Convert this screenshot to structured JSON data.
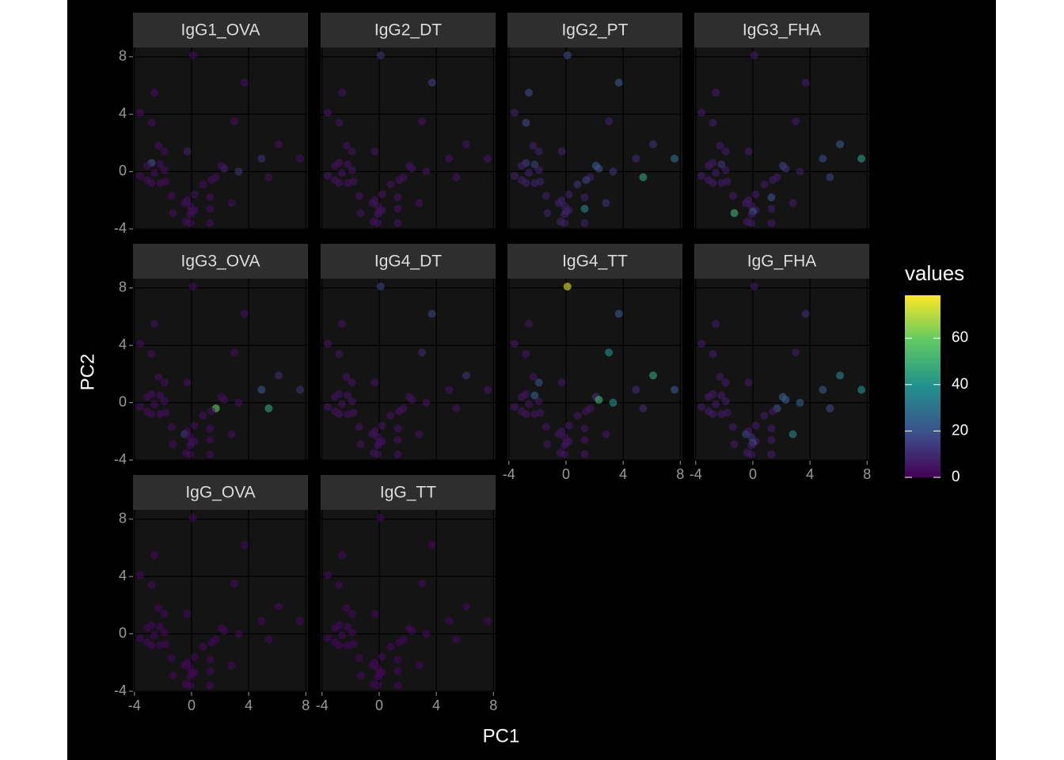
{
  "chart_data": {
    "type": "scatter",
    "x_label": "PC1",
    "y_label": "PC2",
    "legend_title": "values",
    "xlim": [
      -4.1,
      8.15
    ],
    "ylim": [
      -4.05,
      8.65
    ],
    "xticks": [
      -4,
      0,
      4,
      8
    ],
    "yticks": [
      -4,
      0,
      4,
      8
    ],
    "color_lim": [
      0,
      78.5
    ],
    "color_ticks": [
      0,
      20,
      40,
      60
    ],
    "colormap": "viridis",
    "grid": true,
    "x": [
      0.1,
      -2.6,
      3.7,
      -3.6,
      -2.8,
      3.0,
      6.1,
      -2.3,
      -1.9,
      -0.3,
      4.9,
      7.6,
      -2.8,
      -2.2,
      -3.1,
      2.1,
      2.3,
      3.3,
      1.7,
      -1.9,
      -2.6,
      -3.6,
      5.4,
      -3.1,
      1.4,
      -1.8,
      -2.2,
      -2.8,
      0.8,
      0.2,
      -1.4,
      -0.3,
      1.3,
      2.8,
      -0.5,
      -0.1,
      0.2,
      1.3,
      0.0,
      -1.3,
      -0.1,
      1.3,
      -0.4,
      -0.1
    ],
    "y": [
      8.1,
      5.5,
      6.2,
      4.1,
      3.4,
      3.5,
      1.9,
      1.8,
      1.4,
      1.4,
      0.9,
      0.9,
      0.6,
      0.5,
      0.4,
      0.4,
      0.2,
      0.0,
      -0.4,
      0.1,
      -0.1,
      -0.3,
      -0.4,
      -0.6,
      -0.6,
      -0.7,
      -0.8,
      -0.8,
      -0.9,
      -1.6,
      -1.7,
      -2.0,
      -1.8,
      -2.2,
      -2.2,
      -2.4,
      -2.7,
      -2.6,
      -2.8,
      -2.9,
      -3.0,
      -3.6,
      -3.5,
      -3.6
    ],
    "facets": [
      {
        "name": "IgG1_OVA",
        "values": [
          3,
          3,
          3,
          3,
          3,
          3,
          3,
          3,
          3,
          8,
          12,
          3,
          20,
          3,
          3,
          3,
          8,
          12,
          3,
          3,
          3,
          3,
          3,
          3,
          3,
          3,
          3,
          3,
          3,
          3,
          3,
          3,
          3,
          3,
          3,
          3,
          3,
          3,
          3,
          3,
          3,
          3,
          3,
          3
        ]
      },
      {
        "name": "IgG2_DT",
        "values": [
          12,
          4,
          15,
          4,
          4,
          4,
          4,
          4,
          4,
          4,
          4,
          4,
          4,
          4,
          4,
          4,
          4,
          4,
          4,
          4,
          4,
          4,
          4,
          4,
          4,
          4,
          4,
          4,
          4,
          4,
          4,
          4,
          4,
          4,
          4,
          4,
          4,
          4,
          4,
          4,
          4,
          4,
          4,
          4
        ]
      },
      {
        "name": "IgG2_PT",
        "values": [
          18,
          18,
          22,
          8,
          18,
          8,
          12,
          8,
          8,
          8,
          10,
          30,
          14,
          15,
          8,
          22,
          20,
          12,
          8,
          8,
          8,
          8,
          45,
          8,
          15,
          8,
          8,
          8,
          12,
          8,
          8,
          8,
          8,
          12,
          8,
          8,
          8,
          35,
          8,
          8,
          8,
          8,
          8,
          8
        ]
      },
      {
        "name": "IgG3_FHA",
        "values": [
          6,
          6,
          6,
          6,
          6,
          6,
          22,
          6,
          6,
          6,
          18,
          42,
          6,
          14,
          6,
          15,
          12,
          6,
          6,
          6,
          6,
          6,
          15,
          6,
          6,
          6,
          6,
          6,
          6,
          6,
          6,
          6,
          20,
          6,
          6,
          6,
          6,
          6,
          22,
          50,
          6,
          6,
          6,
          6
        ]
      },
      {
        "name": "IgG3_OVA",
        "values": [
          3,
          3,
          3,
          3,
          3,
          3,
          10,
          3,
          3,
          3,
          22,
          12,
          3,
          3,
          3,
          3,
          3,
          3,
          60,
          3,
          3,
          3,
          45,
          3,
          3,
          3,
          3,
          3,
          3,
          3,
          3,
          3,
          3,
          3,
          12,
          3,
          3,
          3,
          3,
          3,
          3,
          3,
          3,
          3
        ]
      },
      {
        "name": "IgG4_DT",
        "values": [
          15,
          4,
          15,
          4,
          4,
          10,
          12,
          4,
          4,
          4,
          4,
          4,
          4,
          4,
          4,
          4,
          4,
          4,
          4,
          4,
          4,
          4,
          4,
          4,
          4,
          4,
          4,
          4,
          4,
          4,
          4,
          4,
          4,
          4,
          4,
          4,
          4,
          4,
          4,
          4,
          4,
          4,
          4,
          4
        ]
      },
      {
        "name": "IgG4_TT",
        "values": [
          75,
          5,
          22,
          5,
          5,
          40,
          45,
          5,
          20,
          5,
          10,
          22,
          5,
          25,
          5,
          12,
          50,
          38,
          5,
          5,
          5,
          5,
          10,
          5,
          5,
          5,
          5,
          5,
          5,
          5,
          5,
          5,
          5,
          5,
          5,
          5,
          5,
          5,
          5,
          5,
          5,
          5,
          5,
          5
        ]
      },
      {
        "name": "IgG_FHA",
        "values": [
          6,
          6,
          10,
          6,
          6,
          6,
          35,
          6,
          6,
          6,
          22,
          40,
          6,
          6,
          6,
          25,
          22,
          25,
          20,
          6,
          6,
          6,
          18,
          6,
          6,
          6,
          6,
          6,
          6,
          6,
          6,
          6,
          6,
          35,
          15,
          12,
          6,
          6,
          20,
          6,
          6,
          6,
          6,
          6
        ]
      },
      {
        "name": "IgG_OVA",
        "values": [
          2,
          2,
          2,
          2,
          2,
          2,
          2,
          2,
          2,
          2,
          2,
          2,
          2,
          2,
          2,
          2,
          2,
          2,
          2,
          2,
          2,
          2,
          2,
          2,
          2,
          2,
          2,
          2,
          2,
          2,
          2,
          2,
          2,
          2,
          2,
          2,
          2,
          2,
          2,
          2,
          2,
          2,
          2,
          2
        ]
      },
      {
        "name": "IgG_TT",
        "values": [
          2,
          2,
          2,
          2,
          2,
          2,
          2,
          2,
          2,
          2,
          2,
          2,
          2,
          2,
          2,
          2,
          2,
          2,
          2,
          2,
          2,
          2,
          2,
          2,
          2,
          2,
          2,
          2,
          2,
          2,
          2,
          2,
          2,
          2,
          2,
          2,
          2,
          2,
          2,
          2,
          2,
          2,
          2,
          2
        ]
      }
    ]
  }
}
